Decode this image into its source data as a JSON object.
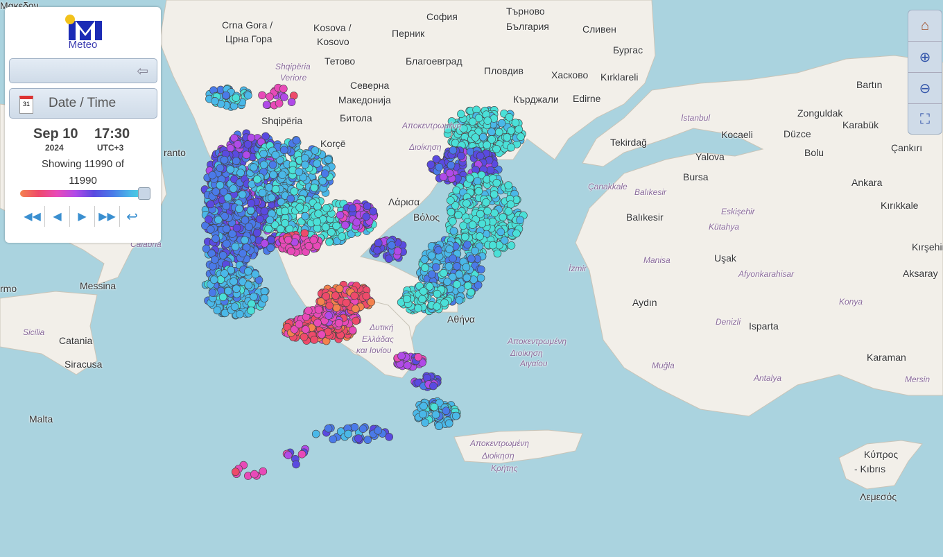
{
  "logo": {
    "text": "Meteo",
    "colors": {
      "sun": "#f2c21b",
      "m": "#1b2bb5"
    }
  },
  "panel": {
    "collapse_icon": "arrow-left-icon",
    "datetime_label": "Date / Time",
    "date": "Sep 10",
    "year": "2024",
    "time": "17:30",
    "timezone": "UTC+3",
    "showing_text": "Showing 11990 of",
    "total": "11990",
    "slider_position_percent": 100,
    "controls": [
      "first-icon",
      "previous-icon",
      "next-icon",
      "last-icon",
      "reset-icon"
    ]
  },
  "toolbar": [
    "home-icon",
    "zoom-in-icon",
    "zoom-out-icon",
    "fullscreen-icon"
  ],
  "legend_colors": [
    "#f4824e",
    "#ee4a6a",
    "#e84ab8",
    "#b04ae8",
    "#5a4ae0",
    "#4a7ae8",
    "#4ab8e8",
    "#4ae0d8"
  ],
  "map_labels": [
    "Crna Gora /",
    "Црна Гора",
    "Kosova /",
    "Kosovo",
    "София",
    "Перник",
    "Търново",
    "България",
    "Сливен",
    "Бургас",
    "Shqipëria",
    "Veriore",
    "Тетово",
    "Благоевград",
    "Пловдив",
    "Хасково",
    "Kırklareli",
    "Северна",
    "Македонија",
    "Кърджали",
    "Edirne",
    "Shqipëria",
    "Битола",
    "Korçë",
    "Tekirdağ",
    "İstanbul",
    "Kocaeli",
    "Düzce",
    "Zonguldak",
    "Karabük",
    "Bartın",
    "Bolu",
    "Çankırı",
    "Yalova",
    "Çanakkale",
    "Balıkesir",
    "Bursa",
    "Ankara",
    "Eskişehir",
    "Kırıkkale",
    "Balıkesir",
    "Kütahya",
    "Kırşehir",
    "Λάρισα",
    "Βόλος",
    "İzmir",
    "Manisa",
    "Uşak",
    "Afyonkarahisar",
    "Aksaray",
    "Aydın",
    "Denizli",
    "Isparta",
    "Konya",
    "Αθήνα",
    "Αποκεντρωμένη",
    "Διοίκηση",
    "Αιγαίου",
    "Muğla",
    "Antalya",
    "Karaman",
    "Mersin",
    "Δυτική",
    "Ελλάδας",
    "και Ιονίου",
    "Messina",
    "rmo",
    "Sicilia",
    "Catania",
    "Siracusa",
    "Malta",
    "Αποκεντρωμένη",
    "Διοίκηση",
    "Κρήτης",
    "Κύπρος",
    "- Kıbrıs",
    "Λεμεσός",
    "ranto",
    "Calabria",
    "Αποκεντρωμένη",
    "Διοίκηση",
    "Μακεδον"
  ]
}
